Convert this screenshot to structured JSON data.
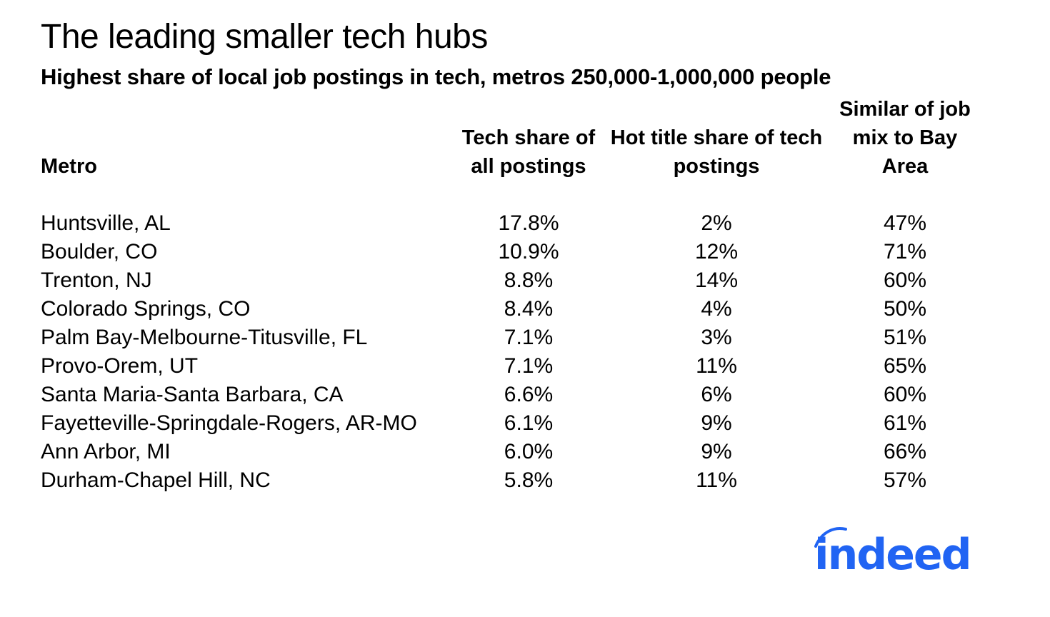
{
  "title": "The leading smaller tech hubs",
  "subtitle": "Highest share of local job postings in tech, metros 250,000-1,000,000 people",
  "logo": {
    "text": "indeed",
    "color": "#2164f3"
  },
  "chart_data": {
    "type": "table",
    "columns": [
      "Metro",
      "Tech share of all postings",
      "Hot title share of tech postings",
      "Similar of job mix to Bay Area"
    ],
    "rows": [
      [
        "Huntsville, AL",
        "17.8%",
        "2%",
        "47%"
      ],
      [
        "Boulder, CO",
        "10.9%",
        "12%",
        "71%"
      ],
      [
        "Trenton, NJ",
        "8.8%",
        "14%",
        "60%"
      ],
      [
        "Colorado Springs, CO",
        "8.4%",
        "4%",
        "50%"
      ],
      [
        "Palm Bay-Melbourne-Titusville, FL",
        "7.1%",
        "3%",
        "51%"
      ],
      [
        "Provo-Orem, UT",
        "7.1%",
        "11%",
        "65%"
      ],
      [
        "Santa Maria-Santa Barbara, CA",
        "6.6%",
        "6%",
        "60%"
      ],
      [
        "Fayetteville-Springdale-Rogers, AR-MO",
        "6.1%",
        "9%",
        "61%"
      ],
      [
        "Ann Arbor, MI",
        "6.0%",
        "9%",
        "66%"
      ],
      [
        "Durham-Chapel Hill, NC",
        "5.8%",
        "11%",
        "57%"
      ]
    ]
  }
}
